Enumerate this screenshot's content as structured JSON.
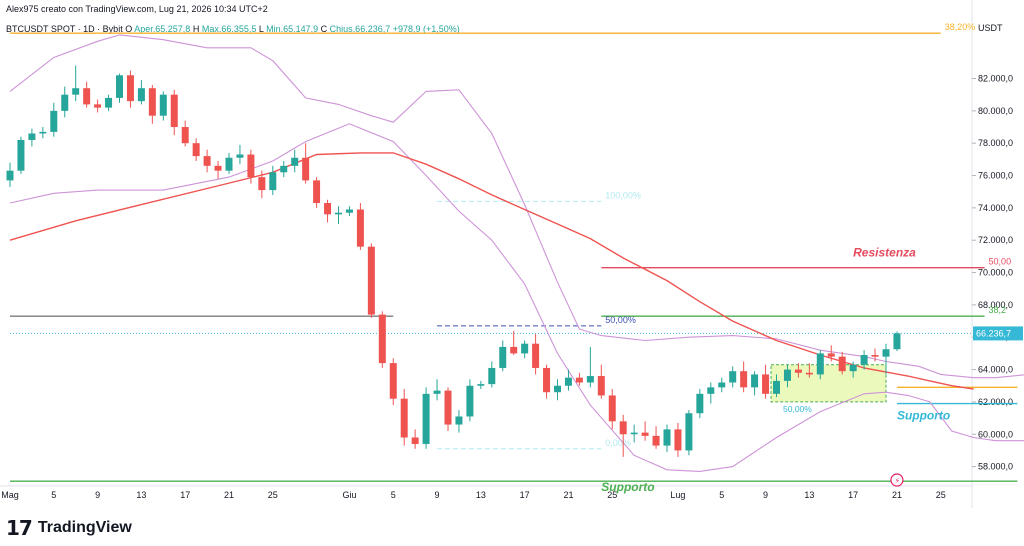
{
  "header": {
    "text": "Alex975 creato con TradingView.com, Lug 21, 2026 10:34 UTC+2"
  },
  "ohlc": {
    "symbol": "BTCUSDT SPOT · 1D · Bybit",
    "o_label": "O",
    "o_value": "Aper.65.257,8",
    "h_label": "H",
    "h_value": "Max.66.355,5",
    "l_label": "L",
    "l_value": "Min.65.147,9",
    "c_label": "C",
    "c_value": "Chius.66.236,7",
    "change": "+978,9 (+1,50%)"
  },
  "axis_currency": "USDT",
  "brand": {
    "name": "TradingView",
    "logo": "TV-logo"
  },
  "colors": {
    "up": "#26a69a",
    "down": "#ef5350",
    "bollinger": "#ce93d8",
    "ma": "#ef5350",
    "fib_gold": "#f7b32b",
    "resistance": "#e54a5e",
    "support_green": "#4caf50",
    "support_cyan": "#35b9d6",
    "dark_line": "#7b7b7b"
  },
  "chart_data": {
    "type": "candlestick",
    "instrument": "BTCUSDT SPOT",
    "timeframe": "1D",
    "exchange": "Bybit",
    "currency": "USDT",
    "x_ticks": [
      {
        "label": "Mag",
        "i": 0
      },
      {
        "label": "5",
        "i": 4
      },
      {
        "label": "9",
        "i": 8
      },
      {
        "label": "13",
        "i": 12
      },
      {
        "label": "17",
        "i": 16
      },
      {
        "label": "21",
        "i": 20
      },
      {
        "label": "25",
        "i": 24
      },
      {
        "label": "Giu",
        "i": 31
      },
      {
        "label": "5",
        "i": 35
      },
      {
        "label": "9",
        "i": 39
      },
      {
        "label": "13",
        "i": 43
      },
      {
        "label": "17",
        "i": 47
      },
      {
        "label": "21",
        "i": 51
      },
      {
        "label": "25",
        "i": 55
      },
      {
        "label": "Lug",
        "i": 61
      },
      {
        "label": "5",
        "i": 65
      },
      {
        "label": "9",
        "i": 69
      },
      {
        "label": "13",
        "i": 73
      },
      {
        "label": "17",
        "i": 77
      },
      {
        "label": "21",
        "i": 81
      },
      {
        "label": "25",
        "i": 85
      }
    ],
    "y_ticks": [
      58000,
      60000,
      62000,
      64000,
      66000,
      68000,
      70000,
      72000,
      74000,
      76000,
      78000,
      80000,
      82000
    ],
    "y_tick_labels": [
      "58.000,0",
      "60.000,0",
      "62.000,0",
      "64.000,0",
      "66.000,0",
      "68.000,0",
      "70.000,0",
      "72.000,0",
      "74.000,0",
      "76.000,0",
      "78.000,0",
      "80.000,0",
      "82.000,0"
    ],
    "ylim": [
      56800,
      85000
    ],
    "last_price": 66236.7,
    "last_price_label": "66.236,7",
    "candles": [
      {
        "i": 0,
        "o": 75700,
        "h": 76800,
        "l": 75300,
        "c": 76300
      },
      {
        "i": 1,
        "o": 76300,
        "h": 78400,
        "l": 76100,
        "c": 78200
      },
      {
        "i": 2,
        "o": 78200,
        "h": 78900,
        "l": 77800,
        "c": 78600
      },
      {
        "i": 3,
        "o": 78600,
        "h": 79000,
        "l": 78300,
        "c": 78700
      },
      {
        "i": 4,
        "o": 78700,
        "h": 80500,
        "l": 78400,
        "c": 80000
      },
      {
        "i": 5,
        "o": 80000,
        "h": 81500,
        "l": 79600,
        "c": 81000
      },
      {
        "i": 6,
        "o": 81000,
        "h": 82800,
        "l": 80600,
        "c": 81400
      },
      {
        "i": 7,
        "o": 81400,
        "h": 81800,
        "l": 80200,
        "c": 80400
      },
      {
        "i": 8,
        "o": 80400,
        "h": 80700,
        "l": 79900,
        "c": 80200
      },
      {
        "i": 9,
        "o": 80200,
        "h": 81000,
        "l": 80000,
        "c": 80800
      },
      {
        "i": 10,
        "o": 80800,
        "h": 82300,
        "l": 80500,
        "c": 82200
      },
      {
        "i": 11,
        "o": 82200,
        "h": 82500,
        "l": 80200,
        "c": 80600
      },
      {
        "i": 12,
        "o": 80600,
        "h": 81900,
        "l": 80400,
        "c": 81400
      },
      {
        "i": 13,
        "o": 81400,
        "h": 81600,
        "l": 79200,
        "c": 79700
      },
      {
        "i": 14,
        "o": 79700,
        "h": 81200,
        "l": 79400,
        "c": 81000
      },
      {
        "i": 15,
        "o": 81000,
        "h": 81300,
        "l": 78500,
        "c": 79000
      },
      {
        "i": 16,
        "o": 79000,
        "h": 79400,
        "l": 77800,
        "c": 78000
      },
      {
        "i": 17,
        "o": 78000,
        "h": 78300,
        "l": 76900,
        "c": 77200
      },
      {
        "i": 18,
        "o": 77200,
        "h": 77600,
        "l": 76200,
        "c": 76600
      },
      {
        "i": 19,
        "o": 76600,
        "h": 76900,
        "l": 75800,
        "c": 76300
      },
      {
        "i": 20,
        "o": 76300,
        "h": 77400,
        "l": 76100,
        "c": 77100
      },
      {
        "i": 21,
        "o": 77100,
        "h": 77900,
        "l": 76700,
        "c": 77300
      },
      {
        "i": 22,
        "o": 77300,
        "h": 77600,
        "l": 75500,
        "c": 75900
      },
      {
        "i": 23,
        "o": 75900,
        "h": 76300,
        "l": 74600,
        "c": 75100
      },
      {
        "i": 24,
        "o": 75100,
        "h": 76600,
        "l": 74800,
        "c": 76200
      },
      {
        "i": 25,
        "o": 76200,
        "h": 76900,
        "l": 75900,
        "c": 76600
      },
      {
        "i": 26,
        "o": 76600,
        "h": 77600,
        "l": 76200,
        "c": 77100
      },
      {
        "i": 27,
        "o": 77100,
        "h": 78000,
        "l": 75500,
        "c": 75700
      },
      {
        "i": 28,
        "o": 75700,
        "h": 75900,
        "l": 74000,
        "c": 74300
      },
      {
        "i": 29,
        "o": 74300,
        "h": 74500,
        "l": 73100,
        "c": 73600
      },
      {
        "i": 30,
        "o": 73600,
        "h": 74100,
        "l": 73000,
        "c": 73700
      },
      {
        "i": 31,
        "o": 73700,
        "h": 74100,
        "l": 73500,
        "c": 73900
      },
      {
        "i": 32,
        "o": 73900,
        "h": 74300,
        "l": 71400,
        "c": 71600
      },
      {
        "i": 33,
        "o": 71600,
        "h": 71800,
        "l": 67200,
        "c": 67400
      },
      {
        "i": 34,
        "o": 67400,
        "h": 67600,
        "l": 64100,
        "c": 64400
      },
      {
        "i": 35,
        "o": 64400,
        "h": 64700,
        "l": 61800,
        "c": 62200
      },
      {
        "i": 36,
        "o": 62200,
        "h": 62800,
        "l": 59300,
        "c": 59800
      },
      {
        "i": 37,
        "o": 59800,
        "h": 60300,
        "l": 59100,
        "c": 59400
      },
      {
        "i": 38,
        "o": 59400,
        "h": 62900,
        "l": 59100,
        "c": 62500
      },
      {
        "i": 39,
        "o": 62500,
        "h": 63400,
        "l": 62100,
        "c": 62700
      },
      {
        "i": 40,
        "o": 62700,
        "h": 62900,
        "l": 60200,
        "c": 60600
      },
      {
        "i": 41,
        "o": 60600,
        "h": 61500,
        "l": 60100,
        "c": 61100
      },
      {
        "i": 42,
        "o": 61100,
        "h": 63400,
        "l": 60800,
        "c": 63000
      },
      {
        "i": 43,
        "o": 63000,
        "h": 63300,
        "l": 62800,
        "c": 63100
      },
      {
        "i": 44,
        "o": 63100,
        "h": 64500,
        "l": 62900,
        "c": 64100
      },
      {
        "i": 45,
        "o": 64100,
        "h": 65800,
        "l": 63900,
        "c": 65400
      },
      {
        "i": 46,
        "o": 65400,
        "h": 66400,
        "l": 64900,
        "c": 65000
      },
      {
        "i": 47,
        "o": 65000,
        "h": 65800,
        "l": 64700,
        "c": 65600
      },
      {
        "i": 48,
        "o": 65600,
        "h": 66200,
        "l": 63700,
        "c": 64100
      },
      {
        "i": 49,
        "o": 64100,
        "h": 64300,
        "l": 62200,
        "c": 62600
      },
      {
        "i": 50,
        "o": 62600,
        "h": 63400,
        "l": 62100,
        "c": 63000
      },
      {
        "i": 51,
        "o": 63000,
        "h": 64000,
        "l": 62700,
        "c": 63500
      },
      {
        "i": 52,
        "o": 63500,
        "h": 63800,
        "l": 63000,
        "c": 63200
      },
      {
        "i": 53,
        "o": 63200,
        "h": 65400,
        "l": 62900,
        "c": 63600
      },
      {
        "i": 54,
        "o": 63600,
        "h": 64300,
        "l": 62200,
        "c": 62400
      },
      {
        "i": 55,
        "o": 62400,
        "h": 62800,
        "l": 60300,
        "c": 60800
      },
      {
        "i": 56,
        "o": 60800,
        "h": 61200,
        "l": 58600,
        "c": 60000
      },
      {
        "i": 57,
        "o": 60000,
        "h": 60600,
        "l": 59500,
        "c": 60100
      },
      {
        "i": 58,
        "o": 60100,
        "h": 60800,
        "l": 59600,
        "c": 59900
      },
      {
        "i": 59,
        "o": 59900,
        "h": 60500,
        "l": 59100,
        "c": 59300
      },
      {
        "i": 60,
        "o": 59300,
        "h": 60600,
        "l": 58900,
        "c": 60300
      },
      {
        "i": 61,
        "o": 60300,
        "h": 60700,
        "l": 58600,
        "c": 59000
      },
      {
        "i": 62,
        "o": 59000,
        "h": 61500,
        "l": 58700,
        "c": 61300
      },
      {
        "i": 63,
        "o": 61300,
        "h": 62800,
        "l": 61000,
        "c": 62500
      },
      {
        "i": 64,
        "o": 62500,
        "h": 63200,
        "l": 61900,
        "c": 62900
      },
      {
        "i": 65,
        "o": 62900,
        "h": 63500,
        "l": 62600,
        "c": 63200
      },
      {
        "i": 66,
        "o": 63200,
        "h": 64200,
        "l": 62900,
        "c": 63900
      },
      {
        "i": 67,
        "o": 63900,
        "h": 64500,
        "l": 62600,
        "c": 62900
      },
      {
        "i": 68,
        "o": 62900,
        "h": 63900,
        "l": 62400,
        "c": 63700
      },
      {
        "i": 69,
        "o": 63700,
        "h": 64300,
        "l": 62200,
        "c": 62500
      },
      {
        "i": 70,
        "o": 62500,
        "h": 63700,
        "l": 62300,
        "c": 63300
      },
      {
        "i": 71,
        "o": 63300,
        "h": 64300,
        "l": 62900,
        "c": 64000
      },
      {
        "i": 72,
        "o": 64000,
        "h": 64400,
        "l": 63500,
        "c": 63800
      },
      {
        "i": 73,
        "o": 63800,
        "h": 64400,
        "l": 63500,
        "c": 63700
      },
      {
        "i": 74,
        "o": 63700,
        "h": 65200,
        "l": 63400,
        "c": 65000
      },
      {
        "i": 75,
        "o": 65000,
        "h": 65500,
        "l": 64500,
        "c": 64800
      },
      {
        "i": 76,
        "o": 64800,
        "h": 65100,
        "l": 63700,
        "c": 63900
      },
      {
        "i": 77,
        "o": 63900,
        "h": 64500,
        "l": 63500,
        "c": 64300
      },
      {
        "i": 78,
        "o": 64300,
        "h": 65200,
        "l": 64000,
        "c": 64900
      },
      {
        "i": 79,
        "o": 64900,
        "h": 65300,
        "l": 64500,
        "c": 64800
      },
      {
        "i": 80,
        "o": 64800,
        "h": 65600,
        "l": 63700,
        "c": 65257.8
      },
      {
        "i": 81,
        "o": 65257.8,
        "h": 66355.5,
        "l": 65147.9,
        "c": 66236.7
      }
    ],
    "bollinger_upper": [
      [
        0,
        81200
      ],
      [
        4,
        83300
      ],
      [
        8,
        84300
      ],
      [
        10,
        84700
      ],
      [
        14,
        84400
      ],
      [
        18,
        83900
      ],
      [
        22,
        83900
      ],
      [
        24,
        83100
      ],
      [
        27,
        80800
      ],
      [
        30,
        80400
      ],
      [
        33,
        79700
      ],
      [
        35,
        79300
      ],
      [
        38,
        81200
      ],
      [
        41,
        81300
      ],
      [
        44,
        78600
      ],
      [
        47,
        74200
      ],
      [
        50,
        69400
      ],
      [
        52,
        66500
      ],
      [
        54,
        66100
      ],
      [
        58,
        65800
      ],
      [
        62,
        66000
      ],
      [
        66,
        66100
      ],
      [
        70,
        65900
      ],
      [
        74,
        65200
      ],
      [
        78,
        64800
      ],
      [
        80,
        64500
      ],
      [
        83,
        64200
      ],
      [
        85,
        63700
      ],
      [
        88,
        63500
      ],
      [
        90,
        63500
      ],
      [
        93,
        63700
      ],
      [
        95,
        64200
      ],
      [
        98,
        64900
      ],
      [
        100,
        65500
      ],
      [
        102,
        65600
      ],
      [
        104,
        65100
      ],
      [
        106,
        65100
      ],
      [
        108,
        65500
      ],
      [
        110,
        65800
      ]
    ],
    "bollinger_lower": [
      [
        0,
        74300
      ],
      [
        4,
        74900
      ],
      [
        8,
        75100
      ],
      [
        14,
        75100
      ],
      [
        20,
        75900
      ],
      [
        24,
        76900
      ],
      [
        27,
        78100
      ],
      [
        31,
        79200
      ],
      [
        35,
        78100
      ],
      [
        38,
        76000
      ],
      [
        41,
        73800
      ],
      [
        44,
        72000
      ],
      [
        47,
        69300
      ],
      [
        50,
        65000
      ],
      [
        53,
        61800
      ],
      [
        57,
        58700
      ],
      [
        60,
        57800
      ],
      [
        63,
        57700
      ],
      [
        66,
        58000
      ],
      [
        70,
        59800
      ],
      [
        74,
        61400
      ],
      [
        78,
        62500
      ],
      [
        80,
        62600
      ],
      [
        82,
        62400
      ],
      [
        84,
        62000
      ],
      [
        86,
        60200
      ],
      [
        88,
        59800
      ],
      [
        90,
        59600
      ],
      [
        92,
        59600
      ],
      [
        94,
        59600
      ],
      [
        96,
        59700
      ],
      [
        98,
        59900
      ],
      [
        100,
        60600
      ],
      [
        102,
        61900
      ],
      [
        104,
        62200
      ],
      [
        106,
        62400
      ],
      [
        108,
        62300
      ]
    ],
    "moving_average": [
      [
        0,
        72000
      ],
      [
        6,
        73200
      ],
      [
        12,
        74200
      ],
      [
        18,
        75200
      ],
      [
        24,
        76200
      ],
      [
        28,
        77300
      ],
      [
        32,
        77400
      ],
      [
        35,
        77400
      ],
      [
        38,
        76700
      ],
      [
        41,
        75800
      ],
      [
        44,
        74800
      ],
      [
        47,
        73900
      ],
      [
        50,
        73000
      ],
      [
        53,
        72100
      ],
      [
        56,
        70900
      ],
      [
        60,
        69500
      ],
      [
        63,
        68200
      ],
      [
        66,
        67000
      ],
      [
        70,
        65800
      ],
      [
        74,
        64900
      ],
      [
        78,
        64100
      ],
      [
        82,
        63600
      ],
      [
        84,
        63300
      ],
      [
        86,
        63000
      ],
      [
        88,
        62800
      ]
    ],
    "horizontal_lines": [
      {
        "name": "fib-38-20-top",
        "value": 84800,
        "i0": 0,
        "i1": 85,
        "color": "#f7b32b",
        "label": "38,20%",
        "style": "solid"
      },
      {
        "name": "resistenza",
        "value": 70300,
        "i0": 54,
        "i1": 89,
        "color": "#e54a5e",
        "label": "50,00",
        "style": "solid"
      },
      {
        "name": "fib-38-2-green",
        "value": 67300,
        "i0": 54,
        "i1": 89,
        "color": "#4caf50",
        "label": "38,2",
        "style": "solid"
      },
      {
        "name": "dark-gray-level",
        "value": 67300,
        "i0": 0,
        "i1": 35,
        "color": "#7b7b7b",
        "label": "",
        "style": "solid"
      },
      {
        "name": "fib-100",
        "value": 74400,
        "i0": 39,
        "i1": 54,
        "color": "#b2ebf2",
        "label": "100,00%",
        "style": "dashed"
      },
      {
        "name": "fib-50",
        "value": 66700,
        "i0": 39,
        "i1": 54,
        "color": "#3f51b5",
        "label": "50,00%",
        "style": "dashed"
      },
      {
        "name": "fib-0",
        "value": 59100,
        "i0": 39,
        "i1": 54,
        "color": "#b2ebf2",
        "label": "0,00%",
        "style": "dashed"
      },
      {
        "name": "gold-short",
        "value": 62900,
        "i0": 81,
        "i1": 92,
        "color": "#f7b32b",
        "label": "",
        "style": "solid"
      },
      {
        "name": "cyan-short",
        "value": 61900,
        "i0": 81,
        "i1": 92,
        "color": "#35b9d6",
        "label": "",
        "style": "solid"
      },
      {
        "name": "supporto-green",
        "value": 57100,
        "i0": 0,
        "i1": 92,
        "color": "#4caf50",
        "label": "",
        "style": "solid"
      },
      {
        "name": "last-price-dotted",
        "value": 66236.7,
        "i0": 0,
        "i1": 92,
        "color": "#35b9d6",
        "label": "",
        "style": "dotted"
      }
    ],
    "box": {
      "i0": 69.5,
      "i1": 80,
      "y0": 62000,
      "y1": 64300,
      "label": "50,00%"
    },
    "annotations": [
      {
        "text": "Resistenza",
        "i": 77,
        "value": 71000,
        "color": "#e54a5e"
      },
      {
        "text": "Supporto",
        "i": 81,
        "value": 60900,
        "color": "#35b9d6"
      },
      {
        "text": "Supporto",
        "i": 54,
        "value": 56500,
        "color": "#4caf50"
      }
    ]
  }
}
